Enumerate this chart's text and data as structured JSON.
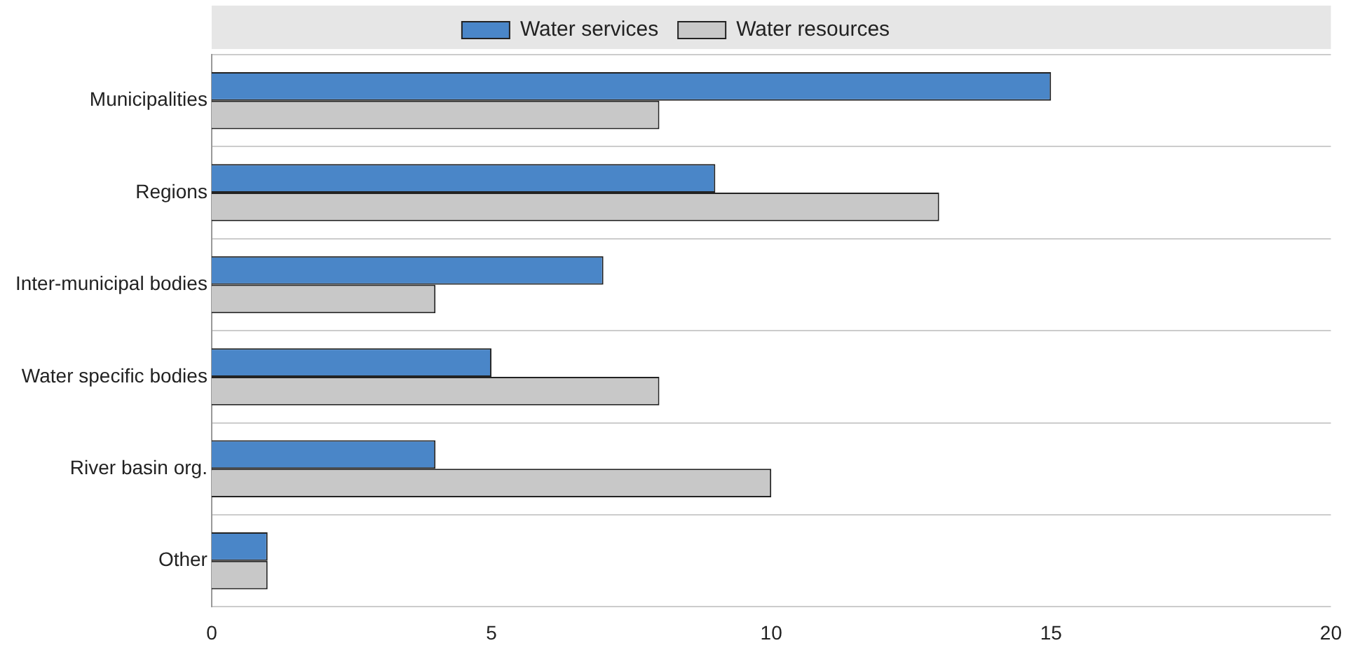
{
  "chart_data": {
    "type": "bar",
    "orientation": "horizontal",
    "categories": [
      "Municipalities",
      "Regions",
      "Inter-municipal bodies",
      "Water specific bodies",
      "River basin org.",
      "Other"
    ],
    "series": [
      {
        "name": "Water services",
        "color": "#4a86c8",
        "values": [
          15,
          9,
          7,
          5,
          4,
          1
        ]
      },
      {
        "name": "Water resources",
        "color": "#c8c8c8",
        "values": [
          8,
          13,
          4,
          8,
          10,
          1
        ]
      }
    ],
    "xlim": [
      0,
      20
    ],
    "xticks": [
      0,
      5,
      10,
      15,
      20
    ],
    "grid": "y",
    "legend": "top"
  }
}
